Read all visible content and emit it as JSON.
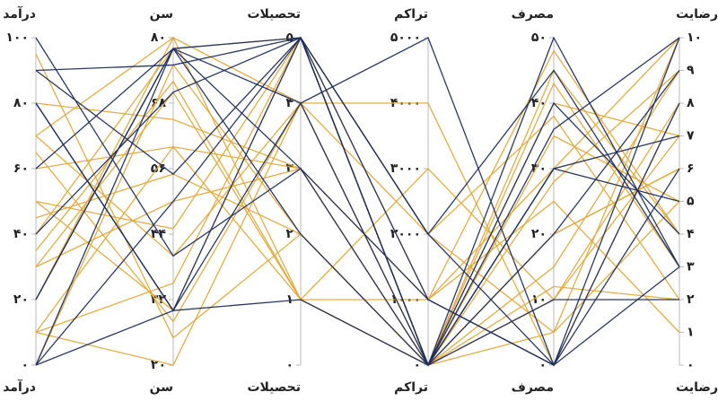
{
  "chart_data": {
    "type": "parallel",
    "axes": [
      {
        "name": "درآمد",
        "lim": [
          0,
          100
        ],
        "ticks": [
          {
            "value": 0,
            "label": "۰"
          },
          {
            "value": 20,
            "label": "۲۰"
          },
          {
            "value": 40,
            "label": "۴۰"
          },
          {
            "value": 60,
            "label": "۶۰"
          },
          {
            "value": 80,
            "label": "۸۰"
          },
          {
            "value": 100,
            "label": "۱۰۰"
          }
        ]
      },
      {
        "name": "سن",
        "lim": [
          20,
          80
        ],
        "ticks": [
          {
            "value": 20,
            "label": "۲۰"
          },
          {
            "value": 32,
            "label": "۳۲"
          },
          {
            "value": 44,
            "label": "۴۴"
          },
          {
            "value": 56,
            "label": "۵۶"
          },
          {
            "value": 68,
            "label": "۶۸"
          },
          {
            "value": 80,
            "label": "۸۰"
          }
        ]
      },
      {
        "name": "تحصیلات",
        "lim": [
          0,
          5
        ],
        "ticks": [
          {
            "value": 0,
            "label": "۰"
          },
          {
            "value": 1,
            "label": "۱"
          },
          {
            "value": 2,
            "label": "۲"
          },
          {
            "value": 3,
            "label": "۳"
          },
          {
            "value": 4,
            "label": "۴"
          },
          {
            "value": 5,
            "label": "۵"
          }
        ]
      },
      {
        "name": "تراکم",
        "lim": [
          0,
          5000
        ],
        "ticks": [
          {
            "value": 0,
            "label": "۰"
          },
          {
            "value": 1000,
            "label": "۱۰۰۰"
          },
          {
            "value": 2000,
            "label": "۲۰۰۰"
          },
          {
            "value": 3000,
            "label": "۳۰۰۰"
          },
          {
            "value": 4000,
            "label": "۴۰۰۰"
          },
          {
            "value": 5000,
            "label": "۵۰۰۰"
          }
        ]
      },
      {
        "name": "مصرف",
        "lim": [
          0,
          50
        ],
        "ticks": [
          {
            "value": 0,
            "label": "۰"
          },
          {
            "value": 10,
            "label": "۱۰"
          },
          {
            "value": 20,
            "label": "۲۰"
          },
          {
            "value": 30,
            "label": "۳۰"
          },
          {
            "value": 40,
            "label": "۴۰"
          },
          {
            "value": 50,
            "label": "۵۰"
          }
        ]
      },
      {
        "name": "رضایت",
        "lim": [
          0,
          10
        ],
        "ticks": [
          {
            "value": 0,
            "label": "۰"
          },
          {
            "value": 1,
            "label": "۱"
          },
          {
            "value": 2,
            "label": "۲"
          },
          {
            "value": 3,
            "label": "۳"
          },
          {
            "value": 4,
            "label": "۴"
          },
          {
            "value": 5,
            "label": "۵"
          },
          {
            "value": 6,
            "label": "۶"
          },
          {
            "value": 7,
            "label": "۷"
          },
          {
            "value": 8,
            "label": "۸"
          },
          {
            "value": 9,
            "label": "۹"
          },
          {
            "value": 10,
            "label": "۱۰"
          }
        ]
      }
    ],
    "series": [
      {
        "color": "#e3a93b",
        "values": [
          70,
          80,
          4,
          4000,
          0,
          8
        ]
      },
      {
        "color": "#e3a93b",
        "values": [
          10,
          60,
          3,
          0,
          20,
          6
        ]
      },
      {
        "color": "#e3a93b",
        "values": [
          50,
          45,
          5,
          1000,
          30,
          10
        ]
      },
      {
        "color": "#e3a93b",
        "values": [
          30,
          70,
          1,
          0,
          45,
          4
        ]
      },
      {
        "color": "#e3a93b",
        "values": [
          95,
          25,
          2,
          0,
          10,
          7
        ]
      },
      {
        "color": "#e3a93b",
        "values": [
          40,
          78,
          5,
          2000,
          38,
          2
        ]
      },
      {
        "color": "#e3a93b",
        "values": [
          10,
          20,
          4,
          0,
          15,
          9
        ]
      },
      {
        "color": "#e3a93b",
        "values": [
          60,
          60,
          1,
          1000,
          25,
          1
        ]
      },
      {
        "color": "#e3a93b",
        "values": [
          30,
          50,
          3,
          0,
          5,
          10
        ]
      },
      {
        "color": "#e3a93b",
        "values": [
          0,
          75,
          2,
          0,
          43,
          3
        ]
      },
      {
        "color": "#e3a93b",
        "values": [
          50,
          30,
          5,
          0,
          35,
          5
        ]
      },
      {
        "color": "#e3a93b",
        "values": [
          20,
          80,
          1,
          3000,
          10,
          8
        ]
      },
      {
        "color": "#e3a93b",
        "values": [
          70,
          40,
          4,
          0,
          20,
          6
        ]
      },
      {
        "color": "#e3a93b",
        "values": [
          80,
          65,
          3,
          1000,
          48,
          4
        ]
      },
      {
        "color": "#e3a93b",
        "values": [
          10,
          35,
          5,
          0,
          28,
          9
        ]
      },
      {
        "color": "#e3a93b",
        "values": [
          45,
          55,
          2,
          0,
          12,
          2
        ]
      },
      {
        "color": "#e3a93b",
        "values": [
          35,
          72,
          1,
          0,
          40,
          7
        ]
      },
      {
        "color": "#e3a93b",
        "values": [
          65,
          28,
          4,
          2000,
          5,
          5
        ]
      },
      {
        "color": "#1f2d5c",
        "values": [
          90,
          75,
          5,
          0,
          50,
          3
        ]
      },
      {
        "color": "#1f2d5c",
        "values": [
          80,
          30,
          5,
          2000,
          0,
          8
        ]
      },
      {
        "color": "#1f2d5c",
        "values": [
          20,
          78,
          4,
          5000,
          0,
          10
        ]
      },
      {
        "color": "#1f2d5c",
        "values": [
          0,
          50,
          5,
          0,
          40,
          4
        ]
      },
      {
        "color": "#1f2d5c",
        "values": [
          100,
          40,
          3,
          1000,
          0,
          3
        ]
      },
      {
        "color": "#1f2d5c",
        "values": [
          60,
          78,
          2,
          0,
          30,
          7
        ]
      },
      {
        "color": "#1f2d5c",
        "values": [
          0,
          30,
          4,
          0,
          20,
          9
        ]
      },
      {
        "color": "#1f2d5c",
        "values": [
          20,
          78,
          5,
          2000,
          45,
          3
        ]
      },
      {
        "color": "#1f2d5c",
        "values": [
          80,
          30,
          1,
          0,
          10,
          2
        ]
      },
      {
        "color": "#1f2d5c",
        "values": [
          0,
          78,
          3,
          0,
          30,
          5
        ]
      },
      {
        "color": "#1f2d5c",
        "values": [
          90,
          55,
          5,
          1000,
          0,
          6
        ]
      },
      {
        "color": "#1f2d5c",
        "values": [
          40,
          70,
          5,
          0,
          36,
          10
        ]
      }
    ]
  }
}
